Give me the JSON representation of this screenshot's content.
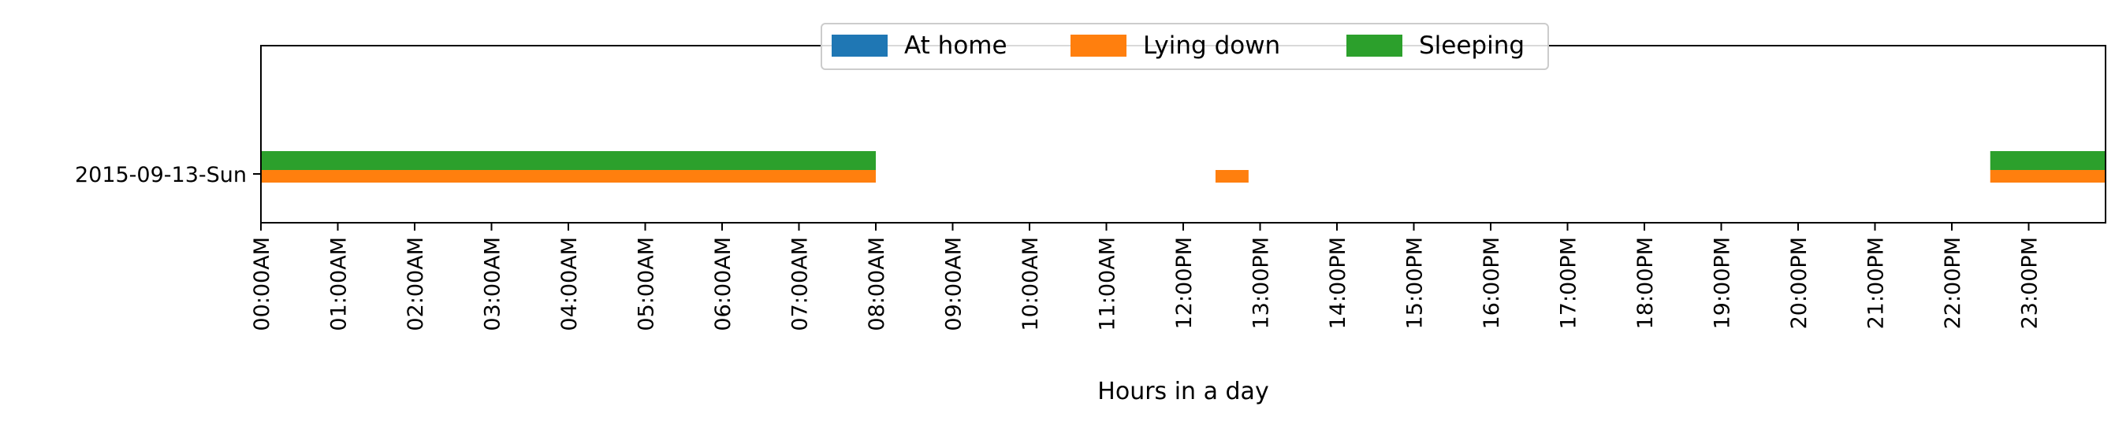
{
  "chart_data": {
    "type": "bar",
    "orientation": "horizontal",
    "subtype": "timeline",
    "title": "",
    "xlabel": "Hours in a day",
    "ylabel": "",
    "xlim": [
      0,
      24
    ],
    "x_ticks": [
      {
        "value": 0,
        "label": "00:00AM"
      },
      {
        "value": 1,
        "label": "01:00AM"
      },
      {
        "value": 2,
        "label": "02:00AM"
      },
      {
        "value": 3,
        "label": "03:00AM"
      },
      {
        "value": 4,
        "label": "04:00AM"
      },
      {
        "value": 5,
        "label": "05:00AM"
      },
      {
        "value": 6,
        "label": "06:00AM"
      },
      {
        "value": 7,
        "label": "07:00AM"
      },
      {
        "value": 8,
        "label": "08:00AM"
      },
      {
        "value": 9,
        "label": "09:00AM"
      },
      {
        "value": 10,
        "label": "10:00AM"
      },
      {
        "value": 11,
        "label": "11:00AM"
      },
      {
        "value": 12,
        "label": "12:00PM"
      },
      {
        "value": 13,
        "label": "13:00PM"
      },
      {
        "value": 14,
        "label": "14:00PM"
      },
      {
        "value": 15,
        "label": "15:00PM"
      },
      {
        "value": 16,
        "label": "16:00PM"
      },
      {
        "value": 17,
        "label": "17:00PM"
      },
      {
        "value": 18,
        "label": "18:00PM"
      },
      {
        "value": 19,
        "label": "19:00PM"
      },
      {
        "value": 20,
        "label": "20:00PM"
      },
      {
        "value": 21,
        "label": "21:00PM"
      },
      {
        "value": 22,
        "label": "22:00PM"
      },
      {
        "value": 23,
        "label": "23:00PM"
      }
    ],
    "categories": [
      "2015-09-13-Sun"
    ],
    "grid": false,
    "legend": {
      "placement": "top-center",
      "columns": 3
    },
    "series": [
      {
        "name": "At home",
        "color": "#1f77b4",
        "lane": "lower",
        "intervals": []
      },
      {
        "name": "Lying down",
        "color": "#ff7f0e",
        "lane": "lower",
        "intervals": [
          [
            0,
            8
          ],
          [
            12.42,
            12.85
          ],
          [
            22.5,
            24
          ]
        ]
      },
      {
        "name": "Sleeping",
        "color": "#2ca02c",
        "lane": "upper",
        "intervals": [
          [
            0,
            8
          ],
          [
            22.5,
            24
          ]
        ]
      }
    ]
  }
}
